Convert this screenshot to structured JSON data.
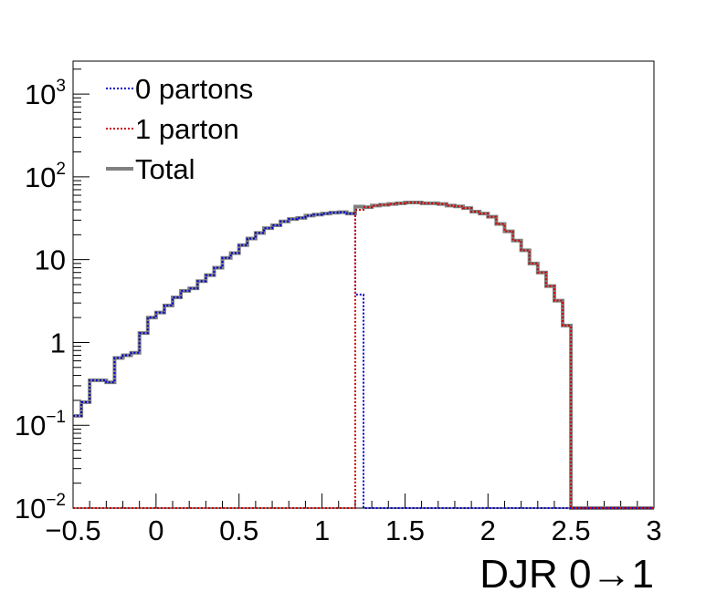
{
  "chart_data": {
    "type": "line",
    "xlabel": "DJR 0→1",
    "ylabel": "",
    "xlim": [
      -0.5,
      3
    ],
    "ylim": [
      0.01,
      2500
    ],
    "y_scale": "log",
    "grid": false,
    "legend_placement": "top-left",
    "x_ticks": [
      {
        "value": -0.5,
        "label": "−0.5"
      },
      {
        "value": 0,
        "label": "0"
      },
      {
        "value": 0.5,
        "label": "0.5"
      },
      {
        "value": 1,
        "label": "1"
      },
      {
        "value": 1.5,
        "label": "1.5"
      },
      {
        "value": 2,
        "label": "2"
      },
      {
        "value": 2.5,
        "label": "2.5"
      },
      {
        "value": 3,
        "label": "3"
      }
    ],
    "y_ticks": [
      {
        "value": 0.01,
        "base": "10",
        "exp": "−2",
        "label": ""
      },
      {
        "value": 0.1,
        "base": "10",
        "exp": "−1",
        "label": ""
      },
      {
        "value": 1,
        "base": "",
        "exp": "",
        "label": "1"
      },
      {
        "value": 10,
        "base": "",
        "exp": "",
        "label": "10"
      },
      {
        "value": 100,
        "base": "10",
        "exp": "2",
        "label": ""
      },
      {
        "value": 1000,
        "base": "10",
        "exp": "3",
        "label": ""
      }
    ],
    "bin_edges": [
      -0.5,
      -0.45,
      -0.4,
      -0.35,
      -0.3,
      -0.25,
      -0.2,
      -0.15,
      -0.1,
      -0.05,
      0,
      0.05,
      0.1,
      0.15,
      0.2,
      0.25,
      0.3,
      0.35,
      0.4,
      0.45,
      0.5,
      0.55,
      0.6,
      0.65,
      0.7,
      0.75,
      0.8,
      0.85,
      0.9,
      0.95,
      1,
      1.05,
      1.1,
      1.15,
      1.2,
      1.25,
      1.3,
      1.35,
      1.4,
      1.45,
      1.5,
      1.55,
      1.6,
      1.65,
      1.7,
      1.75,
      1.8,
      1.85,
      1.9,
      1.95,
      2,
      2.05,
      2.1,
      2.15,
      2.2,
      2.25,
      2.3,
      2.35,
      2.4,
      2.45,
      2.5,
      2.55,
      2.6,
      2.65,
      2.7,
      2.75,
      2.8,
      2.85,
      2.9,
      2.95,
      3
    ],
    "series": [
      {
        "name": "0 partons",
        "color": "#0000cc",
        "style": "dotted",
        "values": [
          0.13,
          0.19,
          0.35,
          0.35,
          0.33,
          0.65,
          0.7,
          0.75,
          1.3,
          2.0,
          2.3,
          2.8,
          3.5,
          4.2,
          4.5,
          5.5,
          6.5,
          8.0,
          10.5,
          12.0,
          15.0,
          18.0,
          21.0,
          24.0,
          26.0,
          29.0,
          31.0,
          32.0,
          34.0,
          35.0,
          36.0,
          37.0,
          37.5,
          36.0,
          3.8,
          0.01,
          0.01,
          0.01,
          0.01,
          0.01,
          0.01,
          0.01,
          0.01,
          0.01,
          0.01,
          0.01,
          0.01,
          0.01,
          0.01,
          0.01,
          0.01,
          0.01,
          0.01,
          0.01,
          0.01,
          0.01,
          0.01,
          0.01,
          0.01,
          0.01,
          0.01,
          0.01,
          0.01,
          0.01,
          0.01,
          0.01,
          0.01,
          0.01,
          0.01,
          0.01
        ]
      },
      {
        "name": "1 parton",
        "color": "#cc0000",
        "style": "dotted",
        "values": [
          0.01,
          0.01,
          0.01,
          0.01,
          0.01,
          0.01,
          0.01,
          0.01,
          0.01,
          0.01,
          0.01,
          0.01,
          0.01,
          0.01,
          0.01,
          0.01,
          0.01,
          0.01,
          0.01,
          0.01,
          0.01,
          0.01,
          0.01,
          0.01,
          0.01,
          0.01,
          0.01,
          0.01,
          0.01,
          0.01,
          0.01,
          0.01,
          0.01,
          0.01,
          40.0,
          43.0,
          45.0,
          46.0,
          47.0,
          48.0,
          49.0,
          49.0,
          48.0,
          48.0,
          47.0,
          45.0,
          44.0,
          42.0,
          38.0,
          36.0,
          33.0,
          27.0,
          22.0,
          17.0,
          13.0,
          9.0,
          7.0,
          4.8,
          3.2,
          1.6,
          0.01,
          0.01,
          0.01,
          0.01,
          0.01,
          0.01,
          0.01,
          0.01,
          0.01,
          0.01
        ]
      },
      {
        "name": "Total",
        "color": "#808080",
        "style": "solid",
        "values": [
          0.13,
          0.19,
          0.35,
          0.35,
          0.33,
          0.65,
          0.7,
          0.75,
          1.3,
          2.0,
          2.3,
          2.8,
          3.5,
          4.2,
          4.5,
          5.5,
          6.5,
          8.0,
          10.5,
          12.0,
          15.0,
          18.0,
          21.0,
          24.0,
          26.0,
          29.0,
          31.0,
          32.0,
          34.0,
          35.0,
          36.0,
          37.0,
          37.5,
          36.0,
          43.8,
          43.0,
          45.0,
          46.0,
          47.0,
          48.0,
          49.0,
          49.0,
          48.0,
          48.0,
          47.0,
          45.0,
          44.0,
          42.0,
          38.0,
          36.0,
          33.0,
          27.0,
          22.0,
          17.0,
          13.0,
          9.0,
          7.0,
          4.8,
          3.2,
          1.6,
          0.01,
          0.01,
          0.01,
          0.01,
          0.01,
          0.01,
          0.01,
          0.01,
          0.01,
          0.01
        ]
      }
    ]
  }
}
